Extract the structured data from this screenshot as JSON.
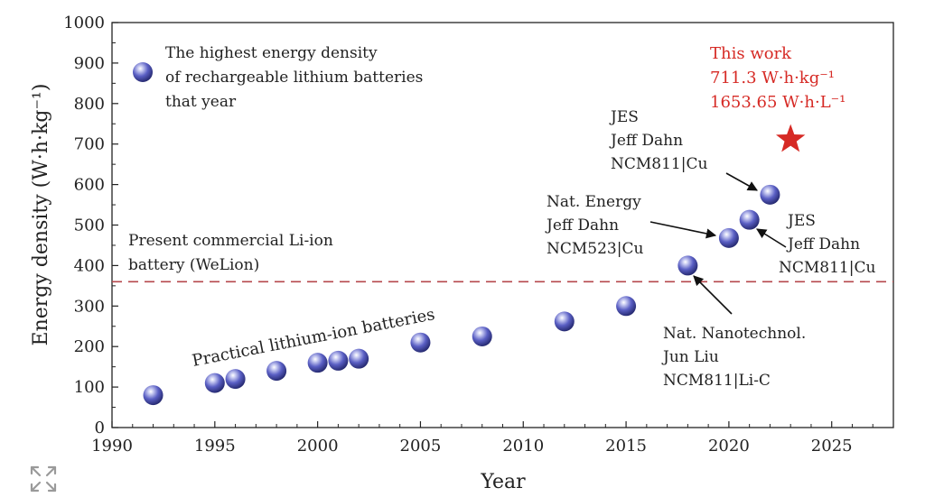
{
  "chart_data": {
    "type": "scatter",
    "xlabel": "Year",
    "ylabel": "Energy density (W·h·kg⁻¹)",
    "xlim": [
      1990,
      2028
    ],
    "ylim": [
      0,
      1000
    ],
    "xticks": [
      1990,
      1995,
      2000,
      2005,
      2010,
      2015,
      2020,
      2025
    ],
    "yticks": [
      0,
      100,
      200,
      300,
      400,
      500,
      600,
      700,
      800,
      900,
      1000
    ],
    "grid": false,
    "legend": {
      "position": "top-left",
      "lines": [
        "The highest energy density",
        "of rechargeable lithium batteries",
        "that year"
      ]
    },
    "series": [
      {
        "name": "The highest energy density of rechargeable lithium batteries that year",
        "color": "#4a4fb8",
        "points": [
          {
            "x": 1992,
            "y": 80
          },
          {
            "x": 1995,
            "y": 110
          },
          {
            "x": 1996,
            "y": 120
          },
          {
            "x": 1998,
            "y": 140
          },
          {
            "x": 2000,
            "y": 160
          },
          {
            "x": 2001,
            "y": 165
          },
          {
            "x": 2002,
            "y": 170
          },
          {
            "x": 2005,
            "y": 210
          },
          {
            "x": 2008,
            "y": 225
          },
          {
            "x": 2012,
            "y": 262
          },
          {
            "x": 2015,
            "y": 300
          },
          {
            "x": 2018,
            "y": 400
          },
          {
            "x": 2020,
            "y": 468
          },
          {
            "x": 2021,
            "y": 513
          },
          {
            "x": 2022,
            "y": 575
          }
        ]
      }
    ],
    "this_work": {
      "x": 2023,
      "y": 711.3,
      "color": "#d62a25",
      "lines": [
        "This work",
        "711.3 W·h·kg⁻¹",
        "1653.65 W·h·L⁻¹"
      ]
    },
    "reference_line": {
      "y": 360,
      "color": "#b5484c",
      "lines": [
        "Present commercial Li-ion",
        "battery (WeLion)"
      ]
    },
    "trend_label": "Practical lithium-ion batteries",
    "annotations": [
      {
        "lines": [
          "Nat. Nanotechnol.",
          "Jun Liu",
          "NCM811|Li-C"
        ],
        "target_x": 2018,
        "target_y": 400
      },
      {
        "lines": [
          "Nat. Energy",
          "Jeff Dahn",
          "NCM523|Cu"
        ],
        "target_x": 2020,
        "target_y": 468
      },
      {
        "lines": [
          "JES",
          "Jeff Dahn",
          "NCM811|Cu"
        ],
        "target_x": 2021,
        "target_y": 513
      },
      {
        "lines": [
          "JES",
          "Jeff Dahn",
          "NCM811|Cu"
        ],
        "target_x": 2022,
        "target_y": 575
      }
    ]
  },
  "ui": {
    "expand_icon": "expand-arrows-icon"
  }
}
